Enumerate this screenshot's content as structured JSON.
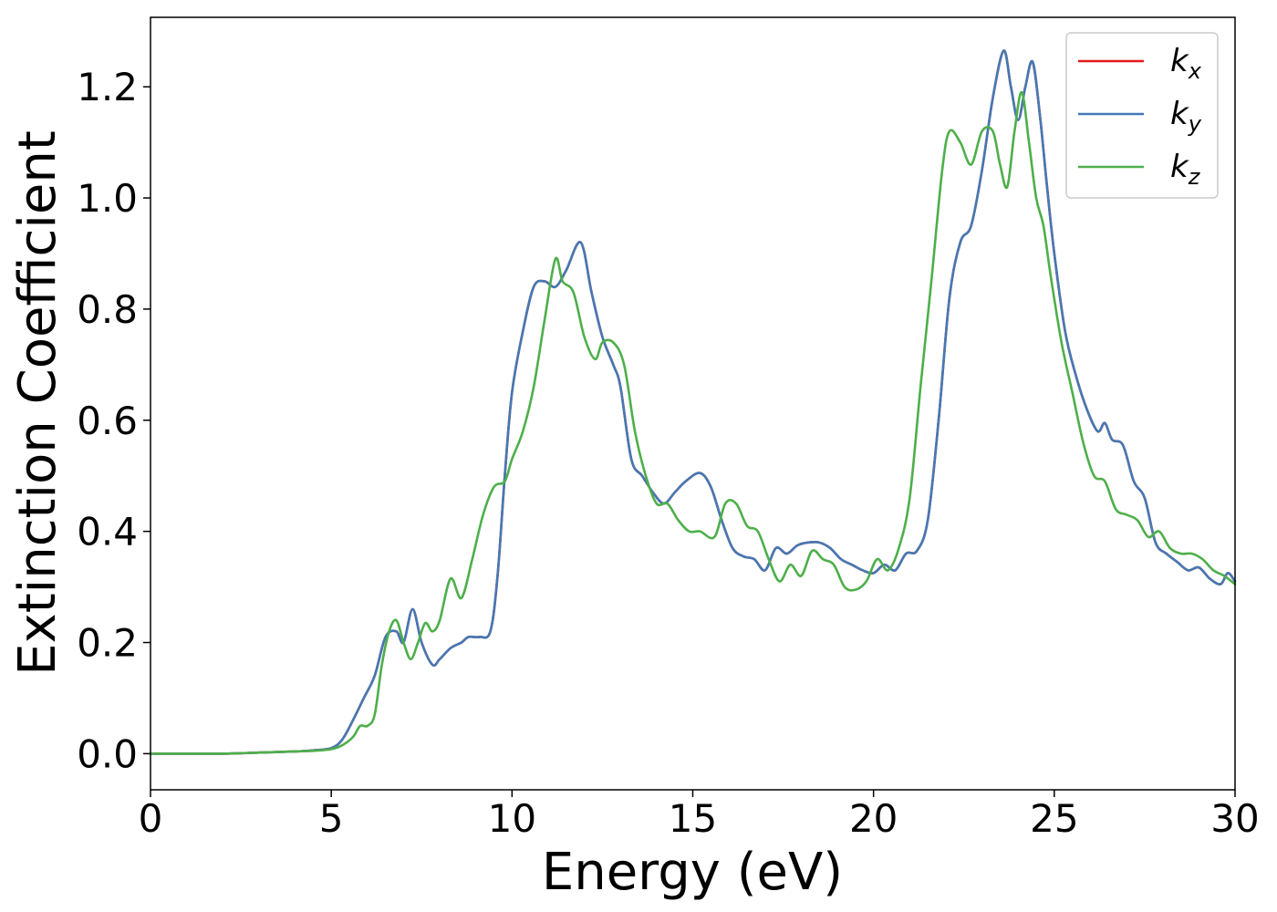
{
  "chart_data": {
    "type": "line",
    "title": "",
    "xlabel": "Energy (eV)",
    "ylabel": "Extinction Coefficient",
    "xlim": [
      0,
      30
    ],
    "ylim": [
      -0.065,
      1.325
    ],
    "grid": false,
    "legend_position": "top-right",
    "x_ticks": [
      0,
      5,
      10,
      15,
      20,
      25,
      30
    ],
    "x_tick_labels": [
      "0",
      "5",
      "10",
      "15",
      "20",
      "25",
      "30"
    ],
    "y_ticks": [
      0.0,
      0.2,
      0.4,
      0.6,
      0.8,
      1.0,
      1.2
    ],
    "y_tick_labels": [
      "0.0",
      "0.2",
      "0.4",
      "0.6",
      "0.8",
      "1.0",
      "1.2"
    ],
    "series": [
      {
        "name": "k",
        "subscript": "x",
        "color": "#e41a1c",
        "x": [
          0,
          2,
          3,
          4,
          4.5,
          5,
          5.3,
          5.6,
          5.9,
          6.2,
          6.5,
          6.8,
          7.0,
          7.25,
          7.5,
          7.8,
          8.0,
          8.3,
          8.6,
          8.8,
          9.1,
          9.4,
          9.6,
          9.8,
          10.0,
          10.3,
          10.6,
          10.9,
          11.2,
          11.5,
          11.9,
          12.2,
          12.5,
          12.8,
          13.0,
          13.3,
          13.6,
          13.9,
          14.2,
          14.5,
          14.8,
          15.2,
          15.5,
          15.8,
          16.1,
          16.4,
          16.7,
          17.0,
          17.3,
          17.6,
          17.9,
          18.2,
          18.5,
          18.8,
          19.1,
          19.4,
          19.7,
          20.0,
          20.3,
          20.6,
          20.9,
          21.2,
          21.5,
          21.8,
          22.1,
          22.4,
          22.7,
          23.0,
          23.3,
          23.6,
          23.8,
          24.0,
          24.2,
          24.4,
          24.6,
          24.8,
          25.0,
          25.3,
          25.6,
          25.9,
          26.2,
          26.4,
          26.6,
          26.9,
          27.2,
          27.5,
          27.8,
          28.1,
          28.4,
          28.7,
          29.0,
          29.3,
          29.6,
          29.8,
          30.0
        ],
        "y": [
          0.0,
          0.0,
          0.002,
          0.004,
          0.006,
          0.01,
          0.025,
          0.06,
          0.1,
          0.14,
          0.21,
          0.22,
          0.2,
          0.26,
          0.2,
          0.16,
          0.17,
          0.19,
          0.2,
          0.21,
          0.21,
          0.22,
          0.32,
          0.5,
          0.65,
          0.76,
          0.84,
          0.85,
          0.84,
          0.87,
          0.92,
          0.83,
          0.75,
          0.7,
          0.66,
          0.53,
          0.5,
          0.47,
          0.45,
          0.47,
          0.49,
          0.505,
          0.48,
          0.42,
          0.37,
          0.355,
          0.35,
          0.33,
          0.37,
          0.36,
          0.375,
          0.38,
          0.38,
          0.37,
          0.35,
          0.34,
          0.33,
          0.325,
          0.34,
          0.33,
          0.36,
          0.365,
          0.42,
          0.6,
          0.82,
          0.92,
          0.95,
          1.05,
          1.18,
          1.265,
          1.2,
          1.14,
          1.2,
          1.245,
          1.15,
          1.02,
          0.9,
          0.76,
          0.68,
          0.62,
          0.58,
          0.595,
          0.565,
          0.555,
          0.49,
          0.46,
          0.38,
          0.36,
          0.345,
          0.33,
          0.335,
          0.315,
          0.305,
          0.325,
          0.31
        ]
      },
      {
        "name": "k",
        "subscript": "y",
        "color": "#4479b4",
        "x": [
          0,
          2,
          3,
          4,
          4.5,
          5,
          5.3,
          5.6,
          5.9,
          6.2,
          6.5,
          6.8,
          7.0,
          7.25,
          7.5,
          7.8,
          8.0,
          8.3,
          8.6,
          8.8,
          9.1,
          9.4,
          9.6,
          9.8,
          10.0,
          10.3,
          10.6,
          10.9,
          11.2,
          11.5,
          11.9,
          12.2,
          12.5,
          12.8,
          13.0,
          13.3,
          13.6,
          13.9,
          14.2,
          14.5,
          14.8,
          15.2,
          15.5,
          15.8,
          16.1,
          16.4,
          16.7,
          17.0,
          17.3,
          17.6,
          17.9,
          18.2,
          18.5,
          18.8,
          19.1,
          19.4,
          19.7,
          20.0,
          20.3,
          20.6,
          20.9,
          21.2,
          21.5,
          21.8,
          22.1,
          22.4,
          22.7,
          23.0,
          23.3,
          23.6,
          23.8,
          24.0,
          24.2,
          24.4,
          24.6,
          24.8,
          25.0,
          25.3,
          25.6,
          25.9,
          26.2,
          26.4,
          26.6,
          26.9,
          27.2,
          27.5,
          27.8,
          28.1,
          28.4,
          28.7,
          29.0,
          29.3,
          29.6,
          29.8,
          30.0
        ],
        "y": [
          0.0,
          0.0,
          0.002,
          0.004,
          0.006,
          0.01,
          0.025,
          0.06,
          0.1,
          0.14,
          0.21,
          0.22,
          0.2,
          0.26,
          0.2,
          0.16,
          0.17,
          0.19,
          0.2,
          0.21,
          0.21,
          0.22,
          0.32,
          0.5,
          0.65,
          0.76,
          0.84,
          0.85,
          0.84,
          0.87,
          0.92,
          0.83,
          0.75,
          0.7,
          0.66,
          0.53,
          0.5,
          0.47,
          0.45,
          0.47,
          0.49,
          0.505,
          0.48,
          0.42,
          0.37,
          0.355,
          0.35,
          0.33,
          0.37,
          0.36,
          0.375,
          0.38,
          0.38,
          0.37,
          0.35,
          0.34,
          0.33,
          0.325,
          0.34,
          0.33,
          0.36,
          0.365,
          0.42,
          0.6,
          0.82,
          0.92,
          0.95,
          1.05,
          1.18,
          1.265,
          1.2,
          1.14,
          1.2,
          1.245,
          1.15,
          1.02,
          0.9,
          0.76,
          0.68,
          0.62,
          0.58,
          0.595,
          0.565,
          0.555,
          0.49,
          0.46,
          0.38,
          0.36,
          0.345,
          0.33,
          0.335,
          0.315,
          0.305,
          0.325,
          0.31
        ]
      },
      {
        "name": "k",
        "subscript": "z",
        "color": "#4daf4a",
        "x": [
          0,
          2,
          3,
          4,
          4.5,
          5,
          5.3,
          5.6,
          5.8,
          6.0,
          6.2,
          6.4,
          6.6,
          6.8,
          7.0,
          7.2,
          7.4,
          7.6,
          7.8,
          8.0,
          8.3,
          8.6,
          8.9,
          9.2,
          9.5,
          9.8,
          10.0,
          10.3,
          10.6,
          10.9,
          11.2,
          11.4,
          11.7,
          12.0,
          12.3,
          12.5,
          12.8,
          13.1,
          13.4,
          13.7,
          14.0,
          14.3,
          14.6,
          14.9,
          15.2,
          15.6,
          15.9,
          16.2,
          16.5,
          16.8,
          17.1,
          17.4,
          17.7,
          18.0,
          18.3,
          18.6,
          18.9,
          19.2,
          19.5,
          19.8,
          20.1,
          20.4,
          20.7,
          21.0,
          21.3,
          21.6,
          21.9,
          22.1,
          22.4,
          22.7,
          23.0,
          23.3,
          23.5,
          23.7,
          23.9,
          24.1,
          24.3,
          24.5,
          24.7,
          24.9,
          25.2,
          25.5,
          25.8,
          26.1,
          26.4,
          26.7,
          27.0,
          27.3,
          27.6,
          27.9,
          28.2,
          28.5,
          28.8,
          29.1,
          29.4,
          29.7,
          30.0
        ],
        "y": [
          0.0,
          0.0,
          0.002,
          0.004,
          0.005,
          0.008,
          0.015,
          0.03,
          0.05,
          0.05,
          0.07,
          0.16,
          0.22,
          0.24,
          0.2,
          0.17,
          0.2,
          0.235,
          0.22,
          0.24,
          0.315,
          0.28,
          0.35,
          0.43,
          0.48,
          0.49,
          0.53,
          0.58,
          0.66,
          0.78,
          0.89,
          0.85,
          0.83,
          0.75,
          0.71,
          0.74,
          0.74,
          0.7,
          0.58,
          0.5,
          0.45,
          0.45,
          0.42,
          0.4,
          0.4,
          0.39,
          0.45,
          0.45,
          0.41,
          0.4,
          0.35,
          0.31,
          0.34,
          0.32,
          0.365,
          0.35,
          0.34,
          0.3,
          0.295,
          0.31,
          0.35,
          0.33,
          0.37,
          0.46,
          0.66,
          0.85,
          1.05,
          1.12,
          1.1,
          1.06,
          1.12,
          1.12,
          1.06,
          1.02,
          1.12,
          1.19,
          1.1,
          1.0,
          0.95,
          0.86,
          0.74,
          0.65,
          0.56,
          0.5,
          0.49,
          0.44,
          0.43,
          0.42,
          0.39,
          0.4,
          0.37,
          0.36,
          0.36,
          0.35,
          0.33,
          0.32,
          0.305
        ]
      }
    ]
  }
}
